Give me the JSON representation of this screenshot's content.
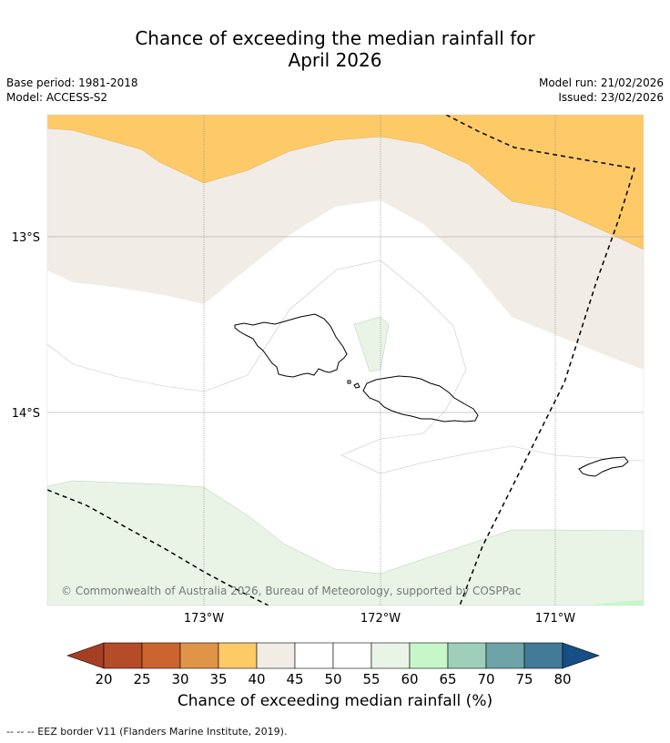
{
  "title": {
    "line1": "Chance of exceeding the median rainfall for",
    "line2": "April 2026"
  },
  "meta": {
    "base_period": "Base period: 1981-2018",
    "model": "Model: ACCESS-S2",
    "model_run": "Model run: 21/02/2026",
    "issued": "Issued: 23/02/2026"
  },
  "map": {
    "lat_labels": [
      "13°S",
      "14°S"
    ],
    "lon_labels": [
      "173°W",
      "172°W",
      "171°W"
    ],
    "copyright": "© Commonwealth of Australia 2026, Bureau of Meteorology, supported by COSPPac",
    "colors": {
      "c35_40": "#fdca67",
      "c40_45": "#f1ece6",
      "c45_55": "#ffffff",
      "c55_60": "#e9f4e7",
      "c60_65": "#c7f7c8"
    }
  },
  "colorbar": {
    "label": "Chance of exceeding median rainfall (%)",
    "ticks": [
      "20",
      "25",
      "30",
      "35",
      "40",
      "45",
      "50",
      "55",
      "60",
      "65",
      "70",
      "75",
      "80"
    ],
    "colors": [
      "#a63e24",
      "#b44c28",
      "#cc6430",
      "#e09448",
      "#fdca67",
      "#f1ece6",
      "#ffffff",
      "#ffffff",
      "#e9f4e7",
      "#c7f7c8",
      "#9dcfba",
      "#6ea3a8",
      "#427a98",
      "#164e85"
    ]
  },
  "footnote": "--  --  -- EEZ border V11 (Flanders Marine Institute, 2019)."
}
